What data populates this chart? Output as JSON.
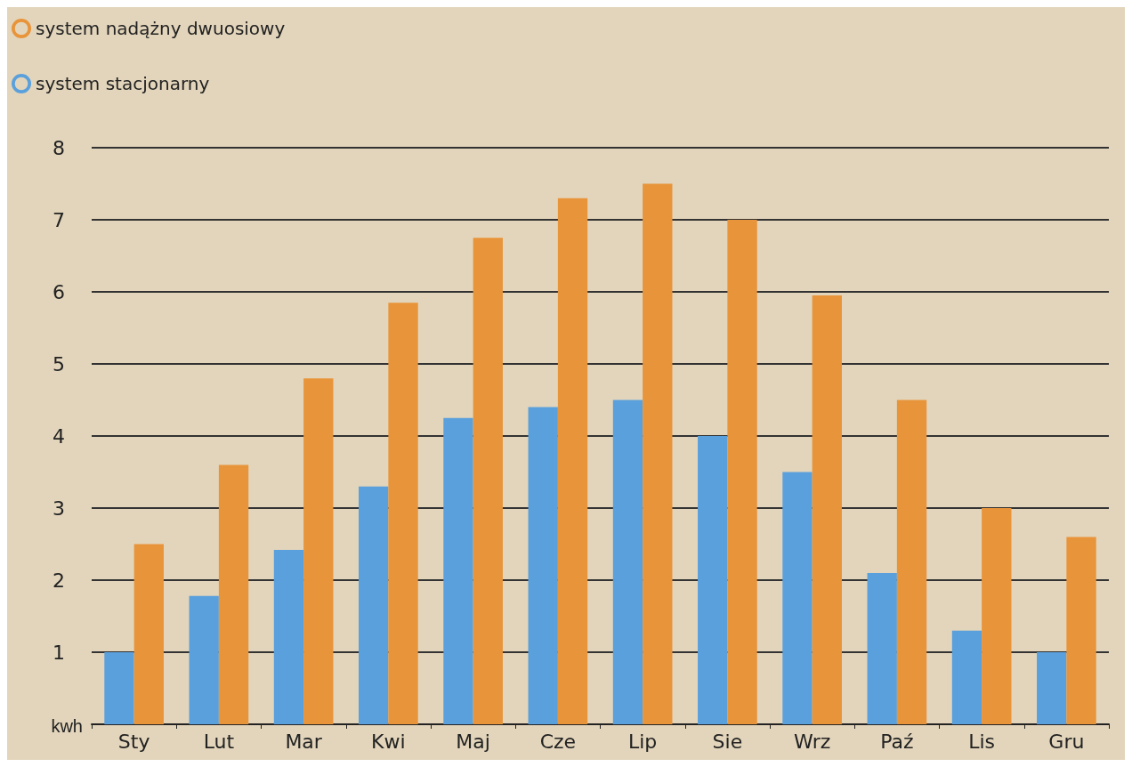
{
  "chart_data": {
    "type": "bar",
    "ylabel": "kwh",
    "categories": [
      "Sty",
      "Lut",
      "Mar",
      "Kwi",
      "Maj",
      "Cze",
      "Lip",
      "Sie",
      "Wrz",
      "Paź",
      "Lis",
      "Gru"
    ],
    "series": [
      {
        "name": "system stacjonarny",
        "color": "#5aa0dc",
        "values": [
          1.0,
          1.78,
          2.42,
          3.3,
          4.25,
          4.4,
          4.5,
          4.0,
          3.5,
          2.1,
          1.3,
          1.0
        ]
      },
      {
        "name": "system nadążny dwuosiowy",
        "color": "#e8943a",
        "values": [
          2.5,
          3.6,
          4.8,
          5.85,
          6.75,
          7.3,
          7.5,
          7.0,
          5.95,
          4.5,
          3.0,
          2.6
        ]
      }
    ],
    "ylim": [
      0,
      8
    ],
    "yticks": [
      {
        "value": 0,
        "label": null
      },
      1,
      2,
      3,
      4,
      5,
      6,
      7,
      8
    ],
    "grid": "y",
    "legend": "top left"
  }
}
